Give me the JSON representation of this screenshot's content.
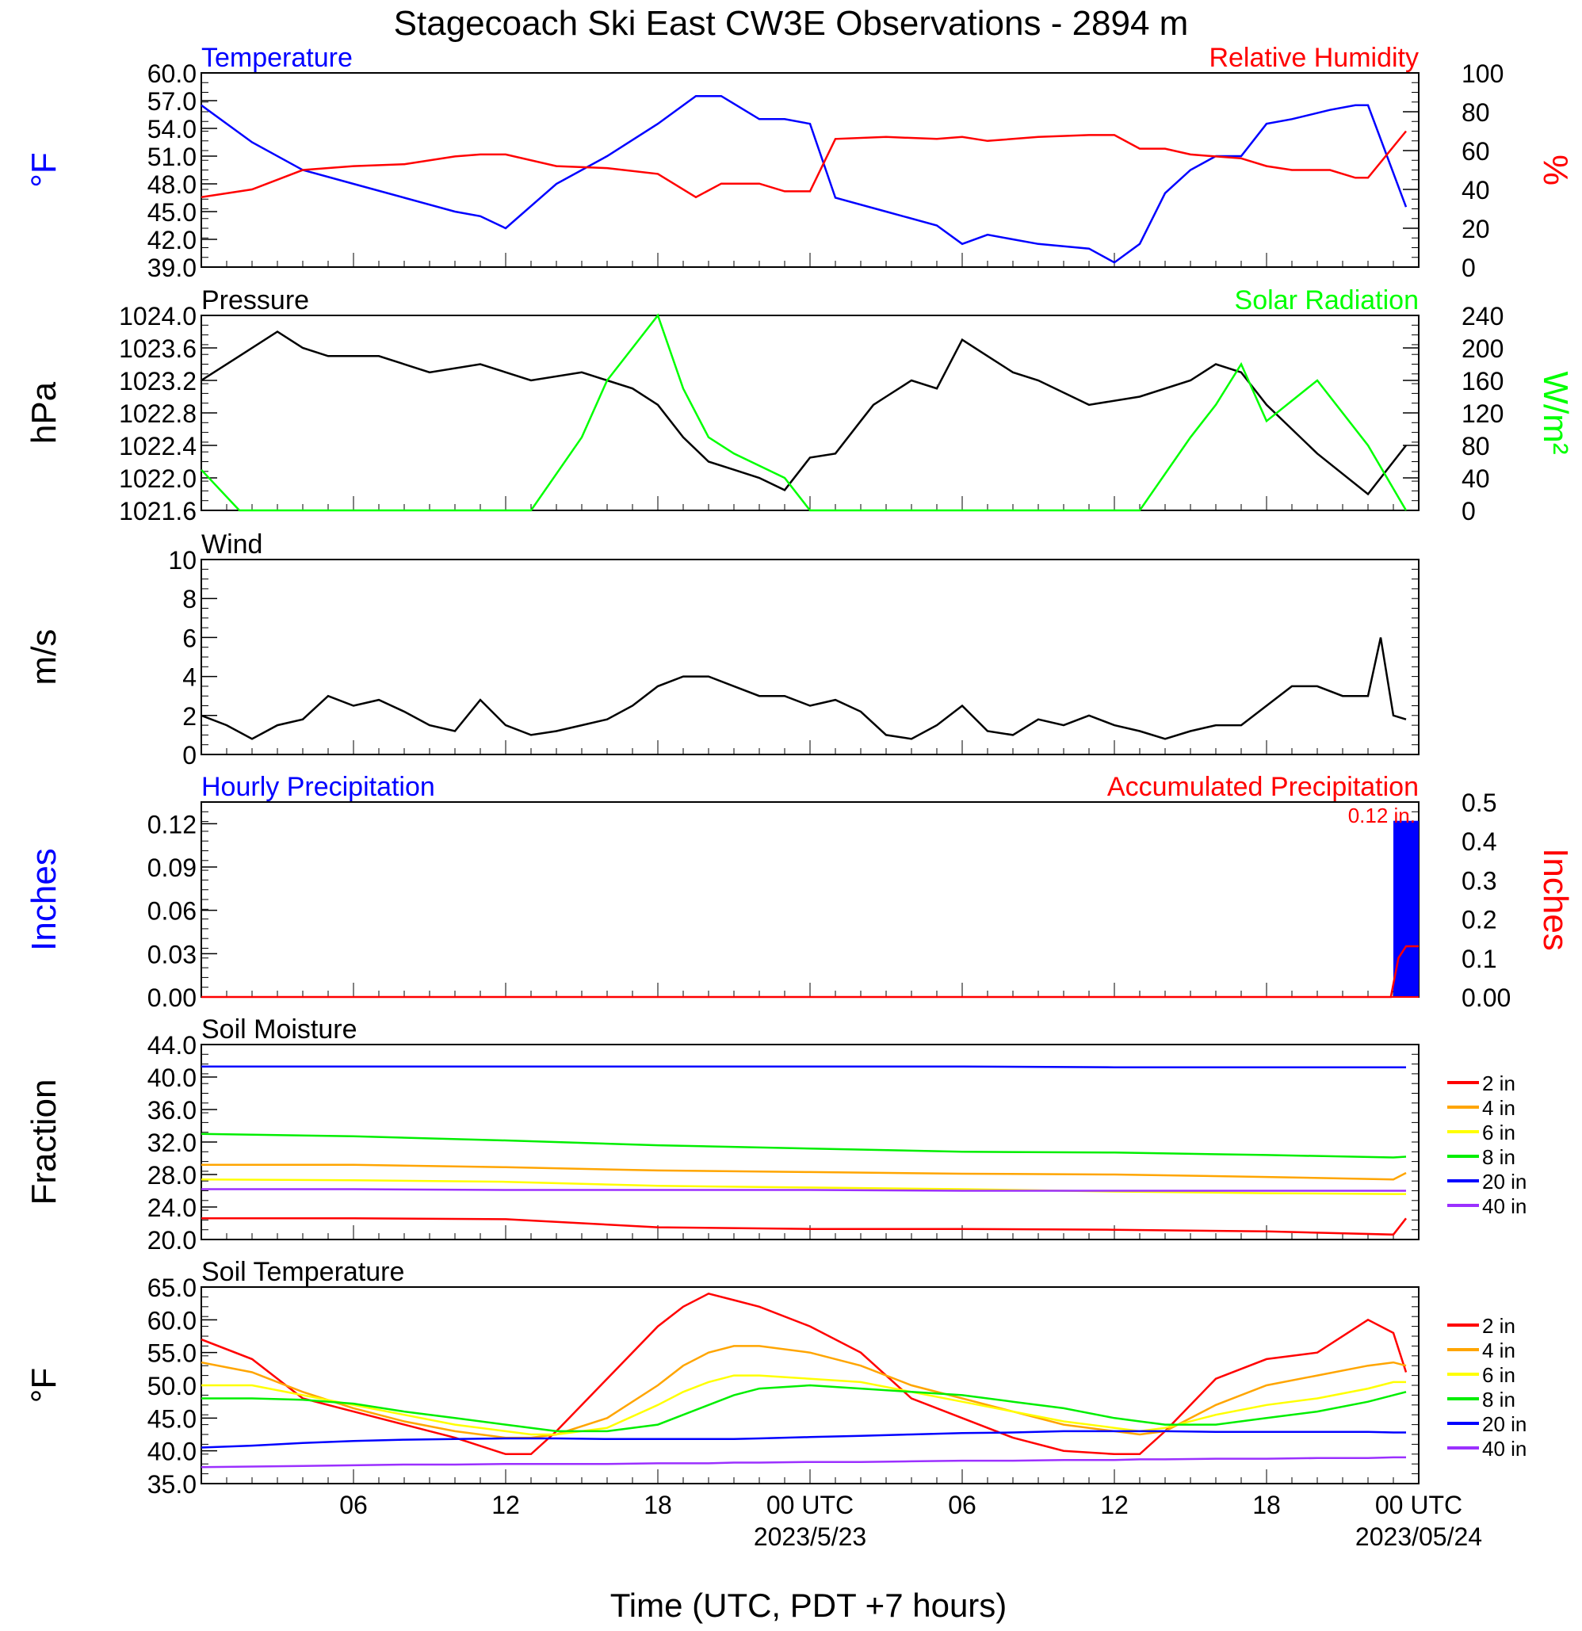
{
  "title": "Stagecoach Ski East CW3E Observations - 2894 m",
  "x_axis": {
    "label": "Time (UTC, PDT +7 hours)",
    "ticks": [
      "06",
      "12",
      "18",
      "00 UTC",
      "06",
      "12",
      "18",
      "00 UTC"
    ],
    "dates": [
      "2023/5/23",
      "2023/05/24"
    ]
  },
  "colors": {
    "temp": "#0000ff",
    "rh": "#ff0000",
    "pressure": "#000000",
    "solar": "#00ff00",
    "wind": "#000000",
    "barb": "#ff0000"
  },
  "chart_data": [
    {
      "type": "line",
      "left_title": "Temperature",
      "right_title": "Relative Humidity",
      "ylabel": "°F",
      "y2label": "%",
      "ylim": [
        39,
        60
      ],
      "y2lim": [
        0,
        100
      ],
      "yticks": [
        "60.0",
        "57.0",
        "54.0",
        "51.0",
        "48.0",
        "45.0",
        "42.0",
        "39.0"
      ],
      "y2ticks": [
        "100",
        "80",
        "60",
        "40",
        "20",
        "0"
      ],
      "x": [
        0,
        2,
        4,
        6,
        8,
        10,
        11,
        12,
        14,
        16,
        18,
        19.5,
        20.5,
        22,
        23,
        24,
        25,
        27,
        29,
        30,
        31,
        33,
        35,
        36,
        37,
        38,
        39,
        40,
        41,
        42,
        43,
        44.5,
        45.5,
        46,
        47.5
      ],
      "series": [
        {
          "name": "Temperature",
          "axis": "left",
          "values": [
            56.5,
            52.5,
            49.5,
            48,
            46.5,
            45,
            44.5,
            43.2,
            48,
            51,
            54.5,
            57.5,
            57.5,
            55,
            55,
            54.5,
            46.5,
            45,
            43.5,
            41.5,
            42.5,
            41.5,
            41,
            39.5,
            41.5,
            47,
            49.5,
            51,
            51,
            54.5,
            55,
            56,
            56.5,
            56.5,
            45.5
          ]
        },
        {
          "name": "Relative Humidity",
          "axis": "right",
          "values": [
            36,
            40,
            50,
            52,
            53,
            57,
            58,
            58,
            52,
            51,
            48,
            36,
            43,
            43,
            39,
            39,
            66,
            67,
            66,
            67,
            65,
            67,
            68,
            68,
            61,
            61,
            58,
            57,
            56,
            52,
            50,
            50,
            46,
            46,
            70
          ]
        }
      ]
    },
    {
      "type": "line",
      "left_title": "Pressure",
      "right_title": "Solar Radiation",
      "ylabel": "hPa",
      "y2label": "W/m²",
      "ylim": [
        1021.6,
        1024.0
      ],
      "y2lim": [
        0,
        240
      ],
      "yticks": [
        "1024.0",
        "1023.6",
        "1023.2",
        "1022.8",
        "1022.4",
        "1022.0",
        "1021.6"
      ],
      "y2ticks": [
        "240",
        "200",
        "160",
        "120",
        "80",
        "40",
        "0"
      ],
      "x": [
        0,
        1.5,
        3,
        4,
        5,
        7,
        9,
        11,
        13,
        15,
        16,
        17,
        18,
        19,
        20,
        21,
        22,
        23,
        24,
        25,
        26,
        26.5,
        27,
        28,
        29,
        30,
        31,
        32,
        33,
        35,
        37,
        39,
        40,
        41,
        42,
        44,
        46,
        47.5
      ],
      "series": [
        {
          "name": "Pressure",
          "axis": "left",
          "values": [
            1023.2,
            1023.5,
            1023.8,
            1023.6,
            1023.5,
            1023.5,
            1023.3,
            1023.4,
            1023.2,
            1023.3,
            1023.2,
            1023.1,
            1022.9,
            1022.5,
            1022.2,
            1022.1,
            1022.0,
            1021.85,
            1022.25,
            1022.3,
            1022.7,
            1022.9,
            1023.0,
            1023.2,
            1023.1,
            1023.7,
            1023.5,
            1023.3,
            1023.2,
            1022.9,
            1023.0,
            1023.2,
            1023.4,
            1023.3,
            1022.9,
            1022.3,
            1021.8,
            1022.4
          ]
        },
        {
          "name": "Solar Radiation",
          "axis": "right",
          "values": [
            50,
            0,
            0,
            0,
            0,
            0,
            0,
            0,
            0,
            90,
            160,
            200,
            240,
            150,
            90,
            70,
            55,
            40,
            0,
            0,
            0,
            0,
            0,
            0,
            0,
            0,
            0,
            0,
            0,
            0,
            0,
            90,
            130,
            180,
            110,
            160,
            80,
            0
          ]
        }
      ]
    },
    {
      "type": "line",
      "left_title": "Wind",
      "ylabel": "m/s",
      "ylim": [
        0,
        10
      ],
      "yticks": [
        "10",
        "8",
        "6",
        "4",
        "2",
        "0"
      ],
      "x": [
        0,
        1,
        2,
        3,
        4,
        5,
        6,
        7,
        8,
        9,
        10,
        11,
        12,
        13,
        14,
        15,
        16,
        17,
        18,
        19,
        20,
        21,
        22,
        23,
        24,
        25,
        26,
        27,
        28,
        29,
        30,
        31,
        32,
        33,
        34,
        35,
        36,
        37,
        38,
        39,
        40,
        41,
        42,
        43,
        44,
        45,
        46,
        46.5,
        47,
        47.5
      ],
      "series": [
        {
          "name": "Wind",
          "axis": "left",
          "values": [
            2,
            1.5,
            0.8,
            1.5,
            1.8,
            3,
            2.5,
            2.8,
            2.2,
            1.5,
            1.2,
            2.8,
            1.5,
            1,
            1.2,
            1.5,
            1.8,
            2.5,
            3.5,
            4,
            4,
            3.5,
            3,
            3,
            2.5,
            2.8,
            2.2,
            1,
            0.8,
            1.5,
            2.5,
            1.2,
            1,
            1.8,
            1.5,
            2,
            1.5,
            1.2,
            0.8,
            1.2,
            1.5,
            1.5,
            2.5,
            3.5,
            3.5,
            3,
            3,
            6,
            2,
            1.8
          ]
        }
      ]
    },
    {
      "type": "bar",
      "left_title": "Hourly Precipitation",
      "right_title": "Accumulated Precipitation",
      "ylabel": "Inches",
      "y2label": "Inches",
      "ylim": [
        0,
        0.135
      ],
      "y2lim": [
        0,
        0.5
      ],
      "yticks": [
        "0.12",
        "0.09",
        "0.06",
        "0.03",
        "0.00"
      ],
      "y2ticks": [
        "0.5",
        "0.4",
        "0.3",
        "0.2",
        "0.1",
        "0.00"
      ],
      "annotation": "0.12 in.",
      "bars": [
        {
          "x_start": 47,
          "x_end": 48,
          "value": 0.122
        }
      ],
      "series": [
        {
          "name": "Accumulated Precipitation",
          "axis": "right",
          "x": [
            0,
            46.9,
            47.2,
            47.5,
            48
          ],
          "values": [
            0,
            0,
            0.1,
            0.13,
            0.13
          ]
        }
      ]
    },
    {
      "type": "line",
      "left_title": "Soil Moisture",
      "ylabel": "Fraction",
      "ylim": [
        20,
        44
      ],
      "yticks": [
        "44.0",
        "40.0",
        "36.0",
        "32.0",
        "28.0",
        "24.0",
        "20.0"
      ],
      "x": [
        0,
        6,
        12,
        18,
        24,
        30,
        36,
        42,
        47,
        47.5
      ],
      "series": [
        {
          "name": "2 in",
          "axis": "left",
          "values": [
            22.6,
            22.6,
            22.5,
            21.5,
            21.3,
            21.3,
            21.2,
            21.0,
            20.6,
            22.6
          ]
        },
        {
          "name": "4 in",
          "axis": "left",
          "values": [
            29.2,
            29.2,
            28.9,
            28.5,
            28.3,
            28.1,
            28.0,
            27.7,
            27.4,
            28.2
          ]
        },
        {
          "name": "6 in",
          "axis": "left",
          "values": [
            27.4,
            27.3,
            27.1,
            26.6,
            26.4,
            26.2,
            25.9,
            25.7,
            25.6,
            25.6
          ]
        },
        {
          "name": "8 in",
          "axis": "left",
          "values": [
            33.0,
            32.7,
            32.2,
            31.6,
            31.2,
            30.8,
            30.7,
            30.4,
            30.1,
            30.2
          ]
        },
        {
          "name": "20 in",
          "axis": "left",
          "values": [
            41.3,
            41.3,
            41.3,
            41.3,
            41.3,
            41.3,
            41.2,
            41.2,
            41.2,
            41.2
          ]
        },
        {
          "name": "40 in",
          "axis": "left",
          "values": [
            26.2,
            26.2,
            26.1,
            26.1,
            26.1,
            26.0,
            26.0,
            26.0,
            26.0,
            26.0
          ]
        }
      ]
    },
    {
      "type": "line",
      "left_title": "Soil Temperature",
      "ylabel": "°F",
      "ylim": [
        35,
        65
      ],
      "yticks": [
        "65.0",
        "60.0",
        "55.0",
        "50.0",
        "45.0",
        "40.0",
        "35.0"
      ],
      "x": [
        0,
        2,
        4,
        6,
        8,
        10,
        12,
        13,
        14,
        16,
        18,
        19,
        20,
        21,
        22,
        24,
        26,
        28,
        30,
        32,
        34,
        36,
        37,
        38,
        40,
        42,
        44,
        46,
        47,
        47.5
      ],
      "series": [
        {
          "name": "2 in",
          "axis": "left",
          "values": [
            57,
            54,
            48,
            46,
            44,
            42,
            39.5,
            39.5,
            43,
            51,
            59,
            62,
            64,
            63,
            62,
            59,
            55,
            48,
            45,
            42,
            40,
            39.5,
            39.5,
            43,
            51,
            54,
            55,
            60,
            58,
            52
          ]
        },
        {
          "name": "4 in",
          "axis": "left",
          "values": [
            53.5,
            52,
            49,
            46.5,
            44.5,
            43,
            42,
            42,
            42.5,
            45,
            50,
            53,
            55,
            56,
            56,
            55,
            53,
            50,
            48,
            46,
            44,
            43,
            42.5,
            43,
            47,
            50,
            51.5,
            53,
            53.5,
            53
          ]
        },
        {
          "name": "6 in",
          "axis": "left",
          "values": [
            50,
            50,
            48.5,
            47,
            45.5,
            44,
            43,
            42.5,
            42.5,
            43.5,
            47,
            49,
            50.5,
            51.5,
            51.5,
            51,
            50.5,
            49,
            47.5,
            46,
            44.5,
            43.5,
            43,
            43.5,
            45.5,
            47,
            48,
            49.5,
            50.5,
            50.5
          ]
        },
        {
          "name": "8 in",
          "axis": "left",
          "values": [
            48,
            48,
            47.8,
            47.2,
            46,
            45,
            44,
            43.5,
            43,
            43,
            44,
            45.5,
            47,
            48.5,
            49.5,
            50,
            49.5,
            49,
            48.5,
            47.5,
            46.5,
            45,
            44.5,
            44,
            44,
            45,
            46,
            47.5,
            48.5,
            49
          ]
        },
        {
          "name": "20 in",
          "axis": "left",
          "values": [
            40.5,
            40.8,
            41.2,
            41.5,
            41.7,
            41.8,
            41.9,
            41.9,
            41.9,
            41.8,
            41.8,
            41.8,
            41.8,
            41.8,
            41.9,
            42.1,
            42.3,
            42.5,
            42.7,
            42.8,
            43,
            43,
            43,
            43,
            42.9,
            42.9,
            42.9,
            42.9,
            42.8,
            42.8
          ]
        },
        {
          "name": "40 in",
          "axis": "left",
          "values": [
            37.5,
            37.6,
            37.7,
            37.8,
            37.9,
            37.9,
            38,
            38,
            38,
            38,
            38.1,
            38.1,
            38.1,
            38.2,
            38.2,
            38.3,
            38.3,
            38.4,
            38.5,
            38.5,
            38.6,
            38.6,
            38.7,
            38.7,
            38.8,
            38.8,
            38.9,
            38.9,
            39,
            39
          ]
        }
      ]
    }
  ],
  "soil_moisture_legend": [
    "2 in",
    "4 in",
    "6 in",
    "8 in",
    "20 in",
    "40 in"
  ],
  "soil_temperature_legend": [
    "2 in",
    "4 in",
    "6 in",
    "8 in",
    "20 in",
    "40 in"
  ],
  "soil_colors": [
    "#ff0000",
    "#ffa500",
    "#ffff00",
    "#00ee00",
    "#0000ff",
    "#9b30ff"
  ]
}
